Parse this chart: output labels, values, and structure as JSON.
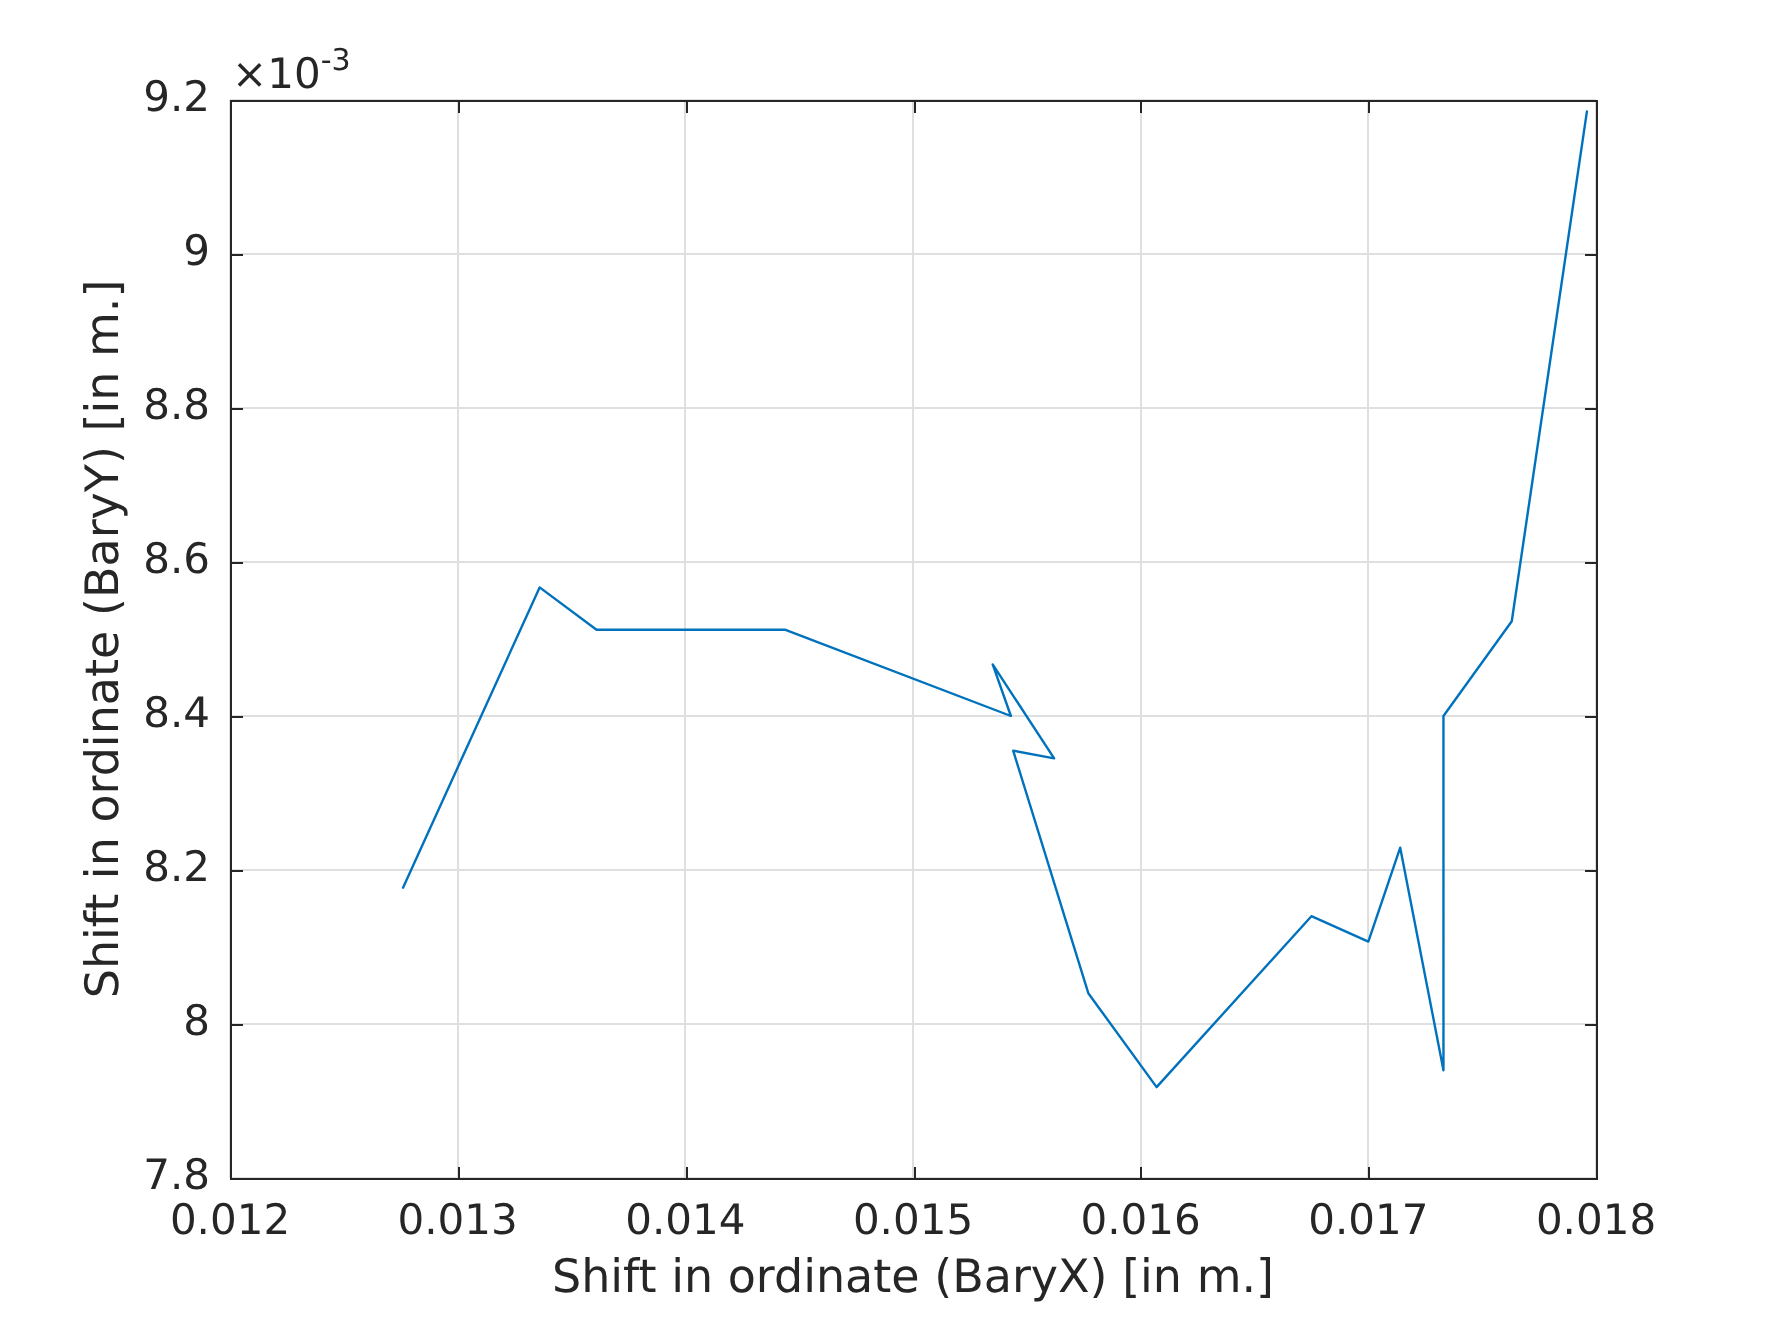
{
  "chart_data": {
    "type": "line",
    "xlabel": "Shift in ordinate (BaryX) [in m.]",
    "ylabel": "Shift in ordinate (BaryY) [in m.]",
    "x": [
      0.01276,
      0.01336,
      0.01361,
      0.01444,
      0.01543,
      0.01535,
      0.01562,
      0.01544,
      0.01577,
      0.01607,
      0.01675,
      0.017,
      0.01714,
      0.01733,
      0.01733,
      0.01763,
      0.01796
    ],
    "values": [
      8.177,
      8.567,
      8.512,
      8.512,
      8.4,
      8.467,
      8.345,
      8.355,
      8.04,
      7.918,
      8.14,
      8.107,
      8.229,
      7.94,
      8.4,
      8.523,
      9.185
    ],
    "color": "#0072bd",
    "xlim": [
      0.012,
      0.018
    ],
    "xticks": [
      0.012,
      0.013,
      0.014,
      0.015,
      0.016,
      0.017,
      0.018
    ],
    "ylim": [
      7.8,
      9.2
    ],
    "yticks": [
      7.8,
      8,
      8.2,
      8.4,
      8.6,
      8.8,
      9,
      9.2
    ],
    "grid": true,
    "annotations": [
      "×10$^{-3}$"
    ]
  }
}
